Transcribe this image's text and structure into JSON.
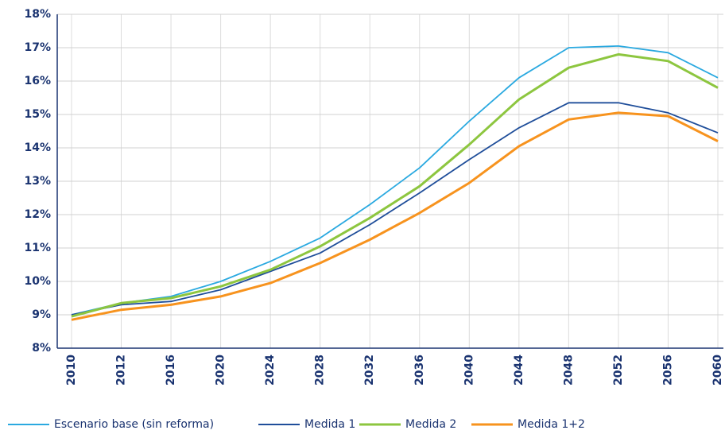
{
  "chart_data": {
    "type": "line",
    "categories": [
      "2010",
      "2012",
      "2016",
      "2020",
      "2024",
      "2028",
      "2032",
      "2036",
      "2040",
      "2044",
      "2048",
      "2052",
      "2056",
      "2060"
    ],
    "series": [
      {
        "name": "Escenario base (sin reforma)",
        "color": "#2aa9e0",
        "values": [
          9.0,
          9.35,
          9.55,
          10.0,
          10.6,
          11.3,
          12.3,
          13.4,
          14.8,
          16.1,
          17.0,
          17.05,
          16.85,
          16.1
        ]
      },
      {
        "name": "Medida 1",
        "color": "#1f4e9a",
        "values": [
          9.0,
          9.3,
          9.4,
          9.75,
          10.3,
          10.85,
          11.7,
          12.65,
          13.65,
          14.6,
          15.35,
          15.35,
          15.05,
          14.45
        ]
      },
      {
        "name": "Medida 2",
        "color": "#8dc63f",
        "values": [
          8.95,
          9.35,
          9.5,
          9.85,
          10.35,
          11.05,
          11.9,
          12.85,
          14.1,
          15.45,
          16.4,
          16.8,
          16.6,
          15.8
        ]
      },
      {
        "name": "Medida 1+2",
        "color": "#f7931e",
        "values": [
          8.85,
          9.15,
          9.3,
          9.55,
          9.95,
          10.55,
          11.25,
          12.05,
          12.95,
          14.05,
          14.85,
          15.05,
          14.95,
          14.2
        ]
      }
    ],
    "ylim": [
      8,
      18
    ],
    "yticks": [
      {
        "value": 8,
        "label": "8%"
      },
      {
        "value": 9,
        "label": "9%"
      },
      {
        "value": 10,
        "label": "10%"
      },
      {
        "value": 11,
        "label": "11%"
      },
      {
        "value": 12,
        "label": "12%"
      },
      {
        "value": 13,
        "label": "13%"
      },
      {
        "value": 14,
        "label": "14%"
      },
      {
        "value": 15,
        "label": "15%"
      },
      {
        "value": 16,
        "label": "16%"
      },
      {
        "value": 17,
        "label": "17%"
      },
      {
        "value": 18,
        "label": "18%"
      }
    ],
    "grid": true
  }
}
